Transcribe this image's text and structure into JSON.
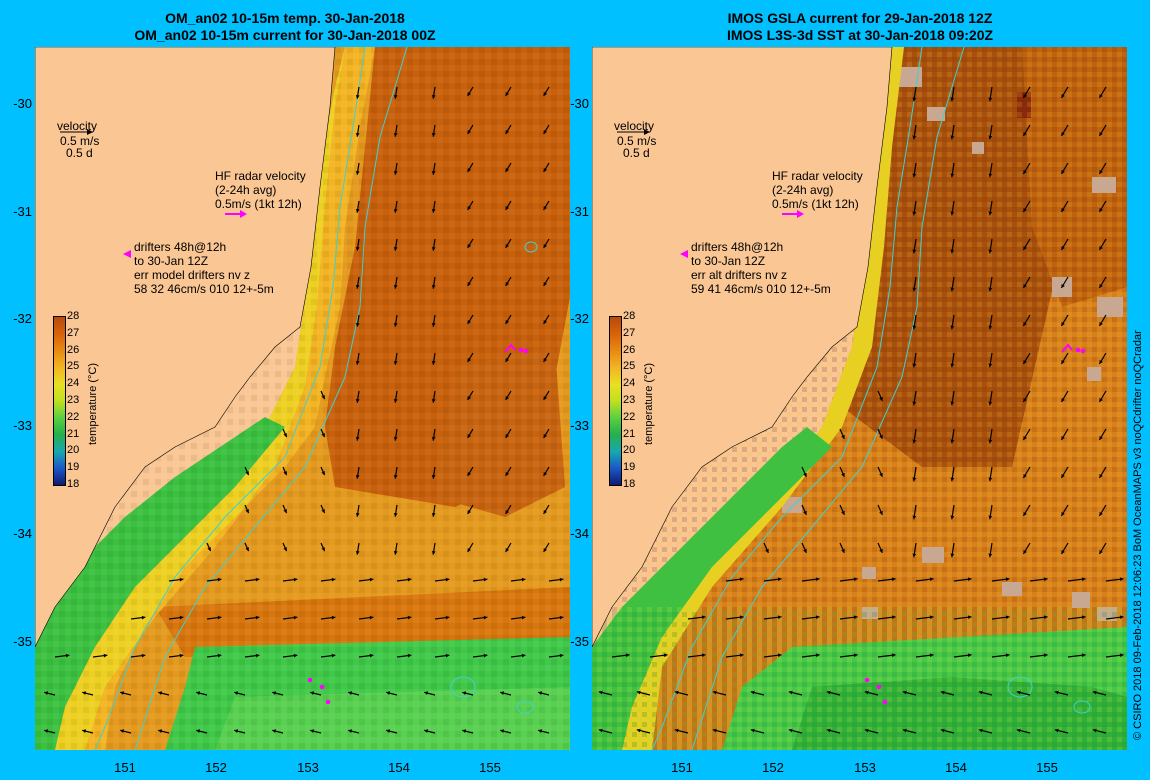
{
  "panels": [
    {
      "title_line1": "OM_an02 10-15m temp. 30-Jan-2018",
      "title_line2": "OM_an02 10-15m current for 30-Jan-2018 00Z",
      "velocity_label": "velocity",
      "velocity_scale": "0.5 m/s",
      "velocity_time": "0.5 d",
      "hf_line1": "HF radar velocity",
      "hf_line2": "(2-24h avg)",
      "hf_line3": "0.5m/s (1kt 12h)",
      "drifters_line1": "drifters 48h@12h",
      "drifters_line2": "to 30-Jan 12Z",
      "drifters_line3": "err model drifters nv z",
      "drifters_line4": "58 32 46cm/s 010 12+-5m"
    },
    {
      "title_line1": "IMOS GSLA current for 29-Jan-2018 12Z",
      "title_line2": "IMOS L3S-3d SST at 30-Jan-2018 09:20Z",
      "velocity_label": "velocity",
      "velocity_scale": "0.5 m/s",
      "velocity_time": "0.5 d",
      "hf_line1": "HF radar velocity",
      "hf_line2": "(2-24h avg)",
      "hf_line3": "0.5m/s (1kt 12h)",
      "drifters_line1": "drifters 48h@12h",
      "drifters_line2": "to 30-Jan 12Z",
      "drifters_line3": "err alt drifters nv z",
      "drifters_line4": "59 41 46cm/s 010 12+-5m"
    }
  ],
  "lat_ticks": [
    "-30",
    "-31",
    "-32",
    "-33",
    "-34",
    "-35"
  ],
  "lon_ticks": [
    "151",
    "152",
    "153",
    "154",
    "155"
  ],
  "colorbar": {
    "title": "temperature (°C)",
    "ticks": [
      "28",
      "27",
      "26",
      "25",
      "24",
      "23",
      "22",
      "21",
      "20",
      "19",
      "18"
    ],
    "colors": [
      "#b84a0c",
      "#d8620a",
      "#e88a12",
      "#f2b422",
      "#e8e020",
      "#c0e020",
      "#5ad040",
      "#24b04a",
      "#18a8b0",
      "#1a58c8",
      "#101a70"
    ]
  },
  "credit": "© CSIRO 2018   09-Feb-2018 12:06:23 BoM OceanMAPS v3 noQCdrifter noQCradar",
  "colors": {
    "background": "#00c0ff",
    "land": "#f9c694",
    "arrows": "#000000",
    "radar_arrow": "#ff00ff",
    "contour": "#40d0d0",
    "missing_data": "#c8a890"
  }
}
